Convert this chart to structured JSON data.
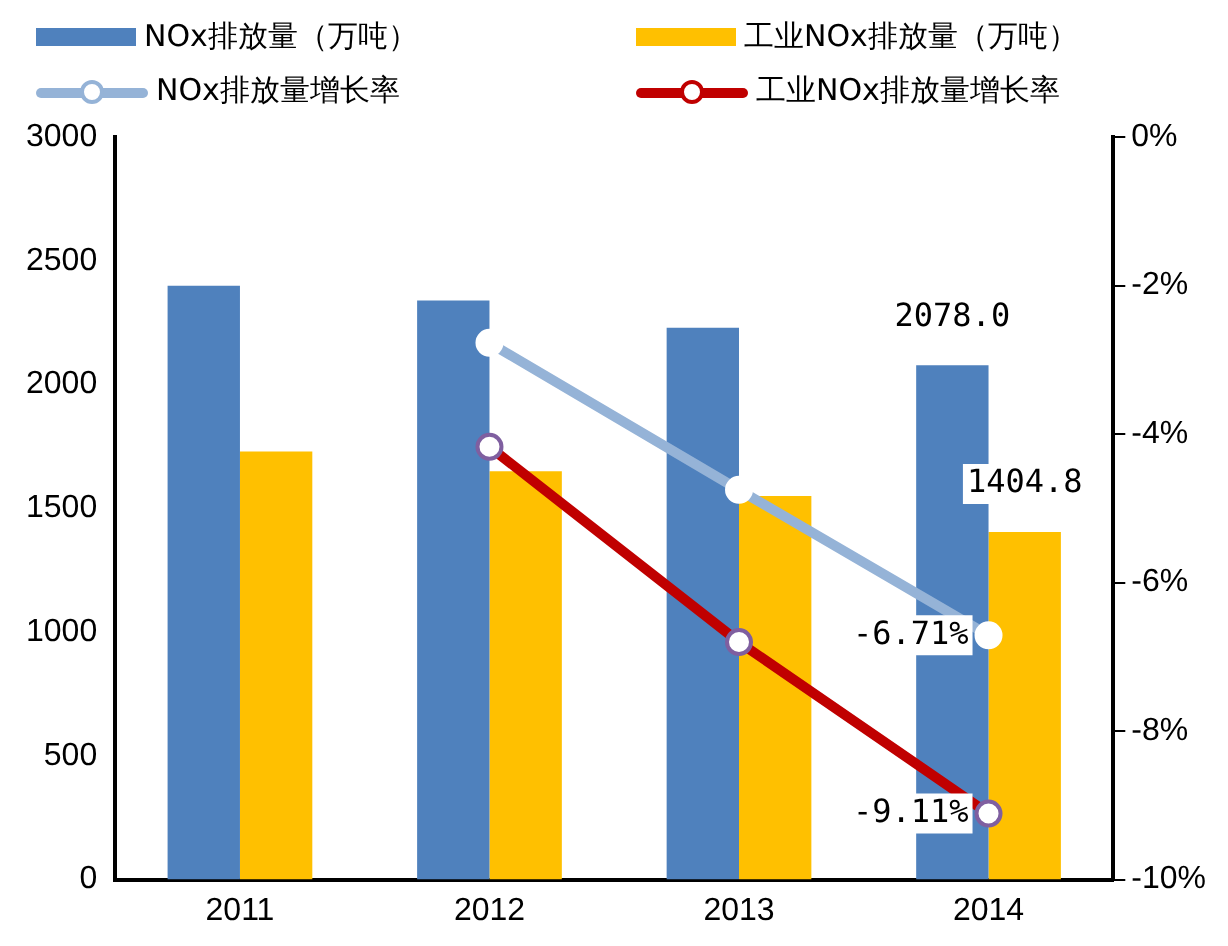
{
  "chart_data": {
    "type": "bar",
    "categories": [
      "2011",
      "2012",
      "2013",
      "2014"
    ],
    "series": [
      {
        "name": "NOx排放量（万吨）",
        "color": "#4f81bd",
        "values": [
          2400,
          2340,
          2230,
          2078.0
        ],
        "value_labels": [
          null,
          null,
          null,
          "2078.0"
        ]
      },
      {
        "name": "工业NOx排放量（万吨）",
        "color": "#ffc000",
        "values": [
          1730,
          1650,
          1550,
          1404.8
        ],
        "value_labels": [
          null,
          null,
          null,
          "1404.8"
        ]
      },
      {
        "name": "NOx排放量增长率",
        "type": "line",
        "axis": "y2",
        "color": "#95b3d7",
        "values": [
          null,
          -2.77,
          -4.75,
          -6.71
        ],
        "value_labels": [
          null,
          null,
          null,
          "-6.71%"
        ]
      },
      {
        "name": "工业NOx排放量增长率",
        "type": "line",
        "axis": "y2",
        "color": "#c00000",
        "values": [
          null,
          -4.17,
          -6.8,
          -9.11
        ],
        "value_labels": [
          null,
          null,
          null,
          "-9.11%"
        ]
      }
    ],
    "ylim": [
      0,
      3000
    ],
    "yticks": [
      0,
      500,
      1000,
      1500,
      2000,
      2500,
      3000
    ],
    "y2lim": [
      -10,
      0
    ],
    "y2ticks": [
      {
        "value": -10,
        "label": "-10%"
      },
      {
        "value": -8,
        "label": "-8%"
      },
      {
        "value": -6,
        "label": "-6%"
      },
      {
        "value": -4,
        "label": "-4%"
      },
      {
        "value": -2,
        "label": "-2%"
      },
      {
        "value": 0,
        "label": "0%"
      }
    ],
    "grid": false,
    "legend": "top",
    "marker": "circle",
    "line_style": "solid"
  }
}
